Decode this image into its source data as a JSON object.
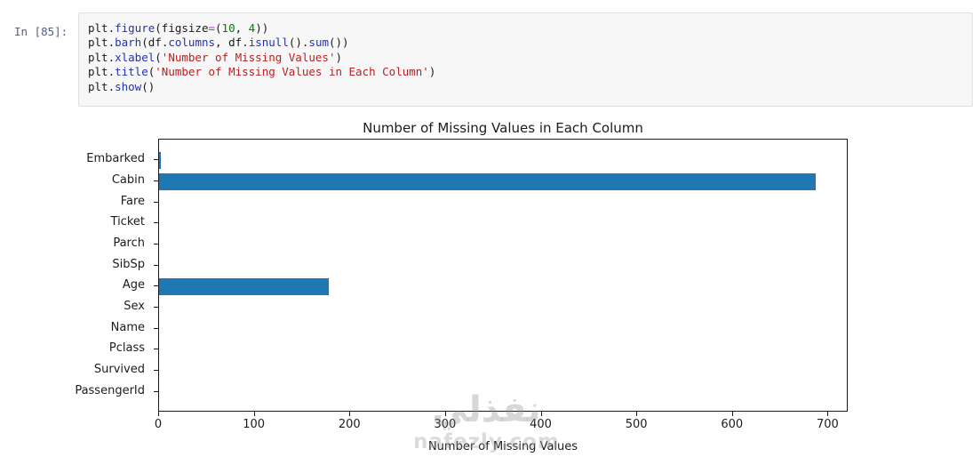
{
  "colors": {
    "bar": "#1f77b4",
    "code_string": "#ba2121",
    "code_number": "#008000",
    "code_operator": "#aa22ff",
    "code_attribute": "#2432ae",
    "prompt": "#535d8e",
    "cell_background": "#f7f7f7",
    "axis": "#1a1a1a"
  },
  "notebook_cell": {
    "prompt": "In [85]:",
    "code_lines": [
      [
        {
          "t": "plt",
          "y": "name"
        },
        {
          "t": ".",
          "y": "punct"
        },
        {
          "t": "figure",
          "y": "attr"
        },
        {
          "t": "(",
          "y": "punct"
        },
        {
          "t": "figsize",
          "y": "name"
        },
        {
          "t": "=",
          "y": "op"
        },
        {
          "t": "(",
          "y": "punct"
        },
        {
          "t": "10",
          "y": "num"
        },
        {
          "t": ", ",
          "y": "punct"
        },
        {
          "t": "4",
          "y": "num"
        },
        {
          "t": "))",
          "y": "punct"
        }
      ],
      [
        {
          "t": "plt",
          "y": "name"
        },
        {
          "t": ".",
          "y": "punct"
        },
        {
          "t": "barh",
          "y": "attr"
        },
        {
          "t": "(",
          "y": "punct"
        },
        {
          "t": "df",
          "y": "name"
        },
        {
          "t": ".",
          "y": "punct"
        },
        {
          "t": "columns",
          "y": "attr"
        },
        {
          "t": ", ",
          "y": "punct"
        },
        {
          "t": "df",
          "y": "name"
        },
        {
          "t": ".",
          "y": "punct"
        },
        {
          "t": "isnull",
          "y": "attr"
        },
        {
          "t": "().",
          "y": "punct"
        },
        {
          "t": "sum",
          "y": "attr"
        },
        {
          "t": "())",
          "y": "punct"
        }
      ],
      [
        {
          "t": "plt",
          "y": "name"
        },
        {
          "t": ".",
          "y": "punct"
        },
        {
          "t": "xlabel",
          "y": "attr"
        },
        {
          "t": "(",
          "y": "punct"
        },
        {
          "t": "'Number of Missing Values'",
          "y": "str"
        },
        {
          "t": ")",
          "y": "punct"
        }
      ],
      [
        {
          "t": "plt",
          "y": "name"
        },
        {
          "t": ".",
          "y": "punct"
        },
        {
          "t": "title",
          "y": "attr"
        },
        {
          "t": "(",
          "y": "punct"
        },
        {
          "t": "'Number of Missing Values in Each Column'",
          "y": "str"
        },
        {
          "t": ")",
          "y": "punct"
        }
      ],
      [
        {
          "t": "plt",
          "y": "name"
        },
        {
          "t": ".",
          "y": "punct"
        },
        {
          "t": "show",
          "y": "attr"
        },
        {
          "t": "()",
          "y": "punct"
        }
      ]
    ]
  },
  "chart_data": {
    "type": "bar",
    "orientation": "horizontal",
    "title": "Number of Missing Values in Each Column",
    "xlabel": "Number of Missing Values",
    "ylabel": "",
    "categories_top_to_bottom": [
      "Embarked",
      "Cabin",
      "Fare",
      "Ticket",
      "Parch",
      "SibSp",
      "Age",
      "Sex",
      "Name",
      "Pclass",
      "Survived",
      "PassengerId"
    ],
    "values": [
      2,
      687,
      0,
      0,
      0,
      0,
      177,
      0,
      0,
      0,
      0,
      0
    ],
    "x_ticks": [
      0,
      100,
      200,
      300,
      400,
      500,
      600,
      700
    ],
    "xlim": [
      0,
      721
    ],
    "bar_color": "#1f77b4",
    "grid": false,
    "legend": null
  },
  "watermark": {
    "arabic": "نفذلي",
    "domain": "nafezly.com"
  }
}
